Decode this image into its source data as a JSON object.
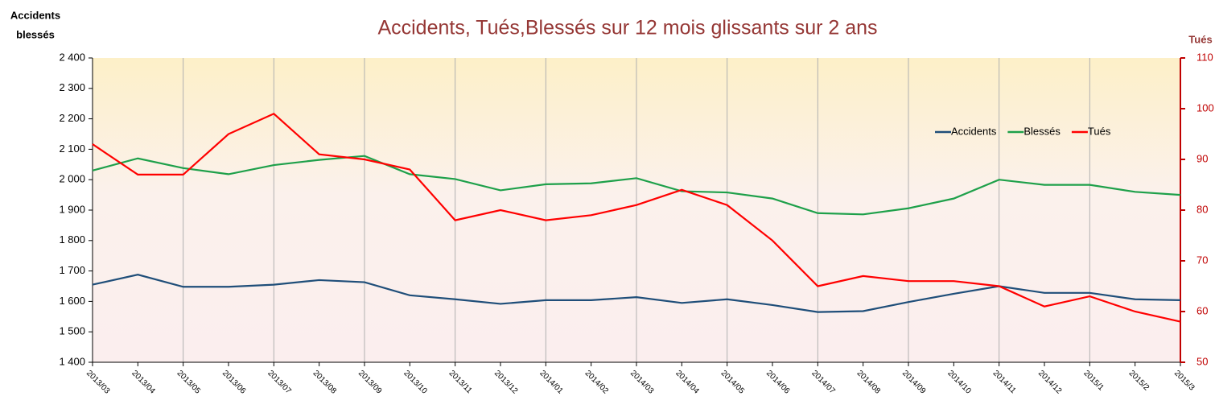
{
  "chart_data": {
    "type": "line",
    "title": "Accidents, Tués,Blessés sur 12 mois glissants sur 2 ans",
    "y_label": [
      "Accidents",
      "blessés"
    ],
    "y2_label": "Tués",
    "categories": [
      "2013/03",
      "2013/04",
      "2013/05",
      "2013/06",
      "2013/07",
      "2013/08",
      "2013/09",
      "2013/10",
      "2013/11",
      "2013/12",
      "2014/01",
      "2014/02",
      "2014/03",
      "2014/04",
      "2014/05",
      "2014/06",
      "2014/07",
      "2014/08",
      "2014/09",
      "2014/10",
      "2014/11",
      "2014/12",
      "2015/1",
      "2015/2",
      "2015/3"
    ],
    "series": [
      {
        "name": "Accidents",
        "color": "#1f4e79",
        "values": [
          1655,
          1688,
          1648,
          1648,
          1655,
          1670,
          1663,
          1620,
          1607,
          1592,
          1604,
          1604,
          1614,
          1595,
          1607,
          1588,
          1565,
          1568,
          1598,
          1625,
          1650,
          1628,
          1628,
          1607,
          1604
        ]
      },
      {
        "name": "Blessés",
        "color": "#1ea04a",
        "values": [
          2030,
          2070,
          2038,
          2018,
          2048,
          2065,
          2078,
          2018,
          2002,
          1965,
          1985,
          1988,
          2005,
          1962,
          1958,
          1938,
          1890,
          1886,
          1906,
          1938,
          2000,
          1983,
          1983,
          1960,
          1950
        ]
      },
      {
        "name": "Tués",
        "color": "#ff0000",
        "axis": "y2",
        "values": [
          93,
          87,
          87,
          95,
          99,
          91,
          90,
          88,
          78,
          80,
          78,
          79,
          81,
          84,
          81,
          74,
          65,
          67,
          66,
          66,
          65,
          61,
          63,
          60,
          58
        ]
      }
    ],
    "ylim": [
      1400,
      2400
    ],
    "yticks": [
      {
        "value": 1400,
        "label": "1 400"
      },
      {
        "value": 1500,
        "label": "1 500"
      },
      {
        "value": 1600,
        "label": "1 600"
      },
      {
        "value": 1700,
        "label": "1 700"
      },
      {
        "value": 1800,
        "label": "1 800"
      },
      {
        "value": 1900,
        "label": "1 900"
      },
      {
        "value": 2000,
        "label": "2 000"
      },
      {
        "value": 2100,
        "label": "2 100"
      },
      {
        "value": 2200,
        "label": "2 200"
      },
      {
        "value": 2300,
        "label": "2 300"
      },
      {
        "value": 2400,
        "label": "2 400"
      }
    ],
    "y2lim": [
      50,
      110
    ],
    "y2ticks": [
      50,
      60,
      70,
      80,
      90,
      100,
      110
    ],
    "y2color": "#c00000",
    "grid": "x",
    "legend": "upper right"
  }
}
